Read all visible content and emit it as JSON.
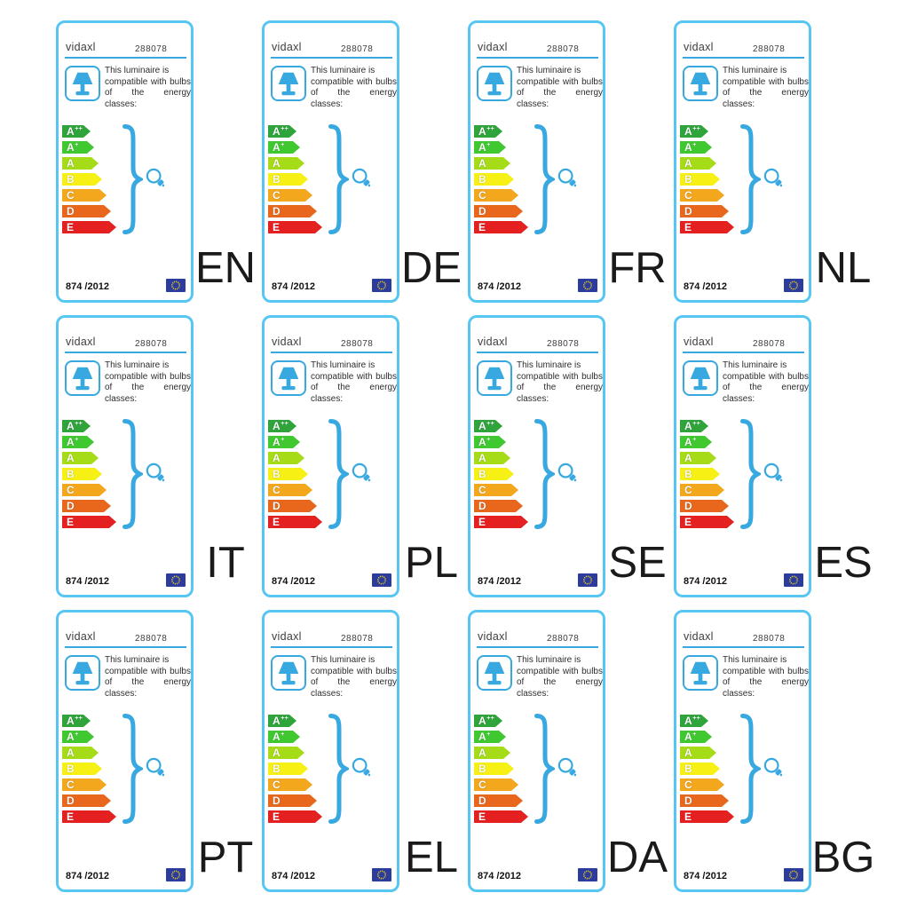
{
  "page": {
    "background": "#ffffff"
  },
  "card": {
    "brand": "vidaxl",
    "product_number": "288078",
    "description_lines": [
      "This luminaire is",
      "compatible with bulbs",
      "of the energy classes:"
    ],
    "regulation": "874 /2012",
    "energy_classes": [
      {
        "grade": "A",
        "sup": "++",
        "color": "#2ea43b"
      },
      {
        "grade": "A",
        "sup": "+",
        "color": "#3fc82f"
      },
      {
        "grade": "A",
        "sup": "",
        "color": "#a5dc17"
      },
      {
        "grade": "B",
        "sup": "",
        "color": "#f6f014"
      },
      {
        "grade": "C",
        "sup": "",
        "color": "#f2a71c"
      },
      {
        "grade": "D",
        "sup": "",
        "color": "#e8671c"
      },
      {
        "grade": "E",
        "sup": "",
        "color": "#e42021"
      }
    ],
    "icons": {
      "lamp": "table-lamp-icon",
      "brace": "curly-brace-icon",
      "bulb": "light-bulb-icon",
      "flag": "eu-flag-icon"
    },
    "colors": {
      "card_border": "#58c6f2",
      "icon_blue": "#38a9e0",
      "flag_background": "#2b3c9c",
      "flag_stars": "#f8d214"
    }
  },
  "languages": [
    "EN",
    "DE",
    "FR",
    "NL",
    "IT",
    "PL",
    "SE",
    "ES",
    "PT",
    "EL",
    "DA",
    "BG"
  ]
}
